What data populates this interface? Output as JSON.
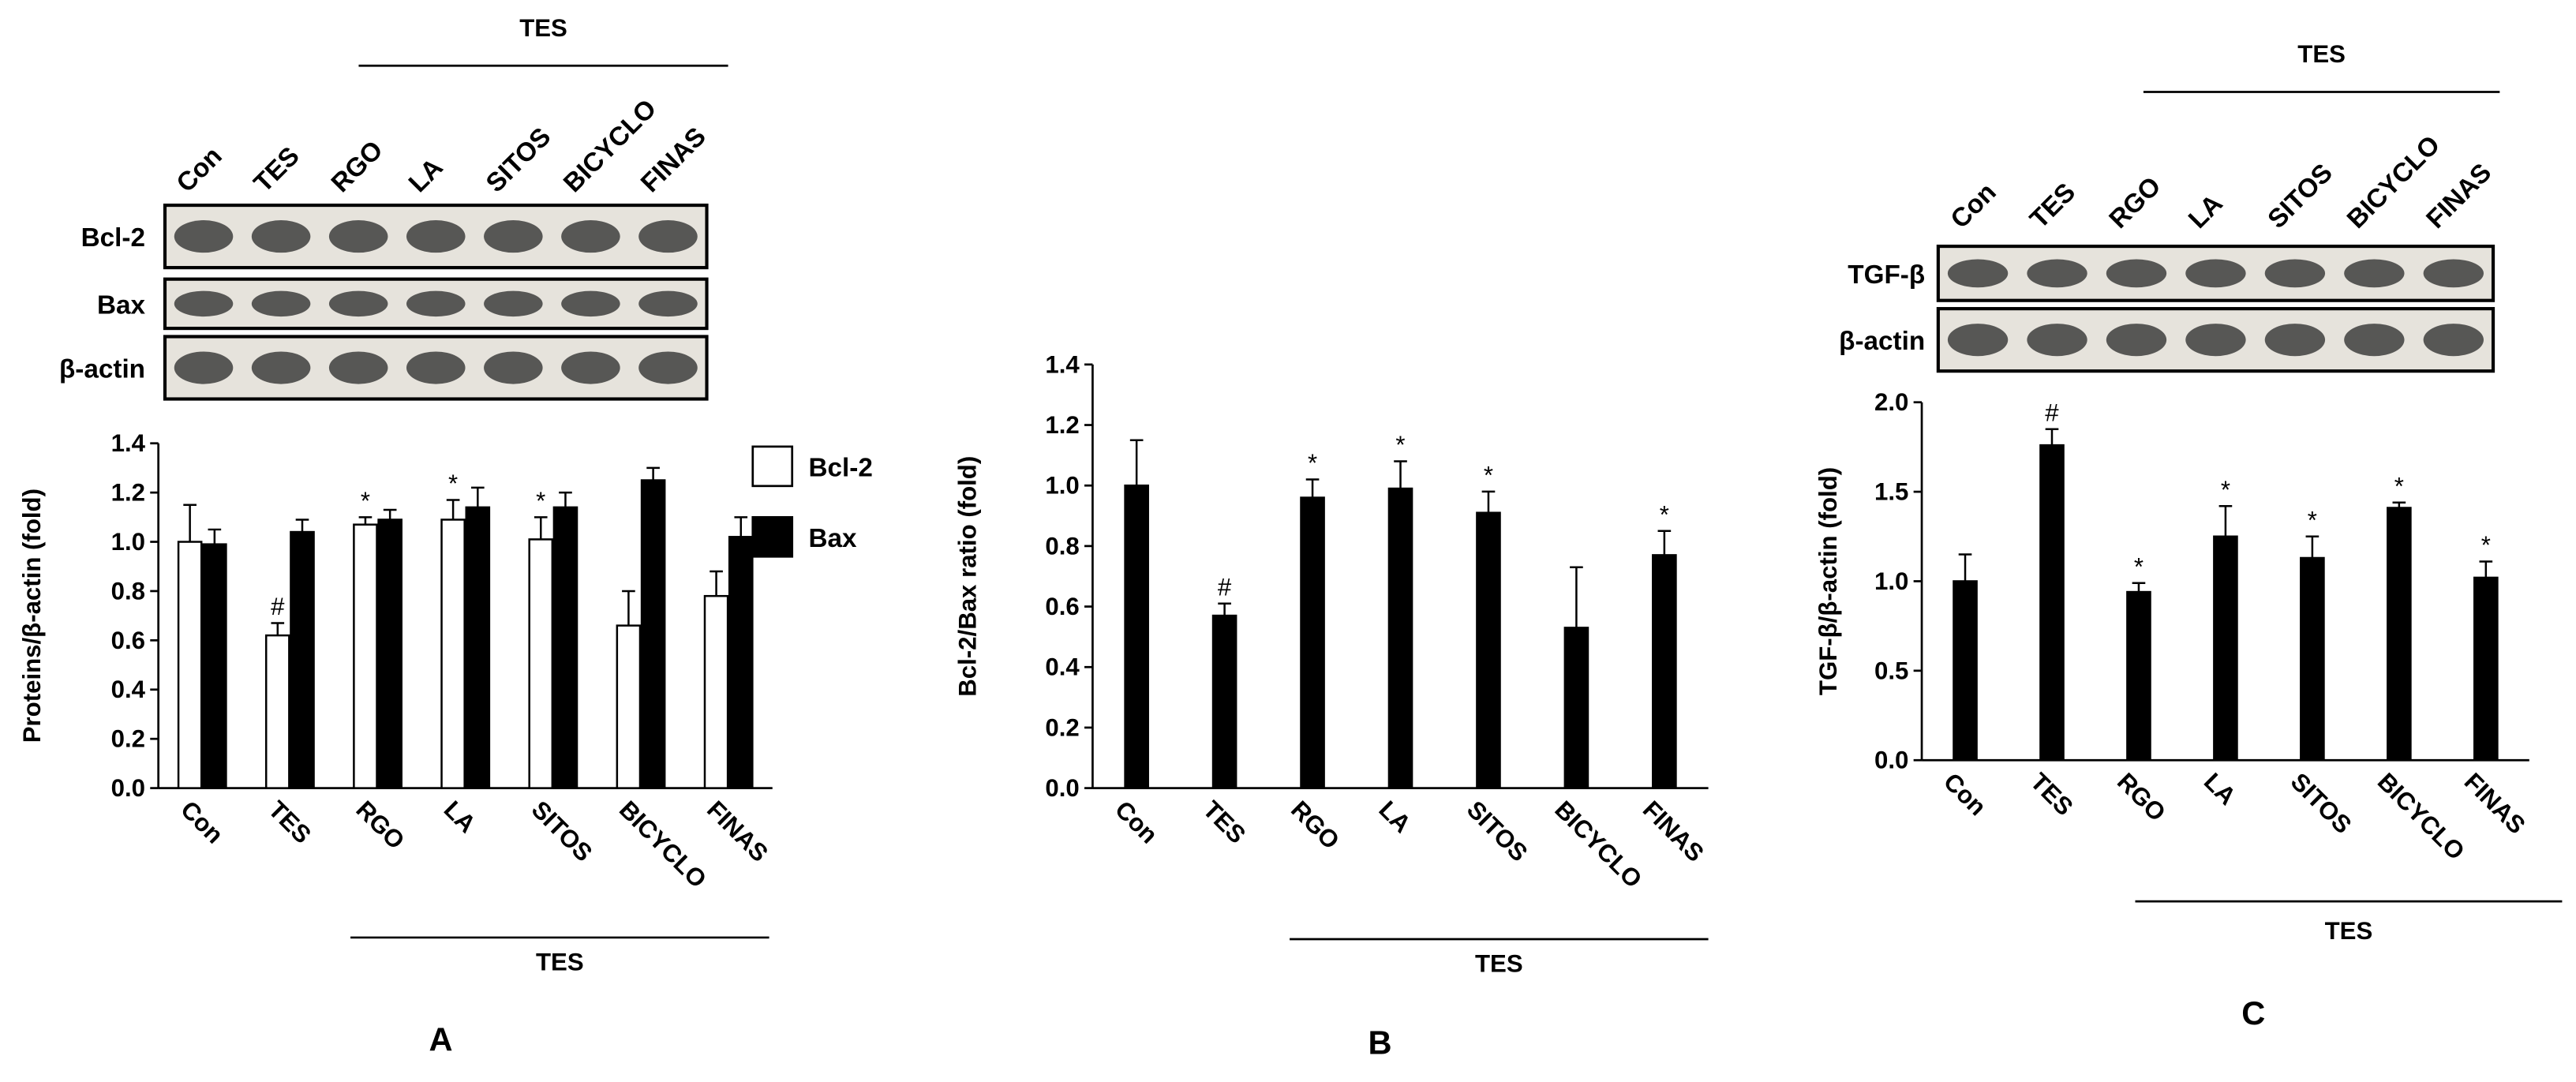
{
  "chart_data": [
    {
      "type": "bar",
      "label": "A",
      "blot": {
        "group_label": "TES",
        "lanes": [
          "Con",
          "TES",
          "RGO",
          "LA",
          "SITOS",
          "BICYCLO",
          "FINAS"
        ],
        "rows": [
          "Bcl-2",
          "Bax",
          "β-actin"
        ]
      },
      "categories": [
        "Con",
        "TES",
        "RGO",
        "LA",
        "SITOS",
        "BICYCLO",
        "FINAS"
      ],
      "group_label": "TES",
      "ylabel": "Proteins/β-actin (fold)",
      "ylim": [
        0,
        1.4
      ],
      "yticks": [
        {
          "value": 0,
          "label": "0.0"
        },
        0.2,
        0.4,
        0.6,
        0.8,
        {
          "value": 1,
          "label": "1.0"
        },
        1.2,
        1.4
      ],
      "legend": "right",
      "series": [
        {
          "name": "Bcl-2",
          "color": "#ffffff",
          "values": [
            1.0,
            0.62,
            1.07,
            1.09,
            1.01,
            0.66,
            0.78
          ],
          "errors": [
            0.15,
            0.05,
            0.03,
            0.08,
            0.09,
            0.14,
            0.1
          ],
          "annotations": [
            null,
            "#",
            "*",
            "*",
            "*",
            null,
            null
          ]
        },
        {
          "name": "Bax",
          "color": "#000000",
          "values": [
            0.99,
            1.04,
            1.09,
            1.14,
            1.14,
            1.25,
            1.02
          ],
          "errors": [
            0.06,
            0.05,
            0.04,
            0.08,
            0.06,
            0.05,
            0.08
          ]
        }
      ]
    },
    {
      "type": "bar",
      "label": "B",
      "categories": [
        "Con",
        "TES",
        "RGO",
        "LA",
        "SITOS",
        "BICYCLO",
        "FINAS"
      ],
      "group_label": "TES",
      "ylabel": "Bcl-2/Bax ratio (fold)",
      "ylim": [
        0,
        1.4
      ],
      "yticks": [
        {
          "value": 0,
          "label": "0.0"
        },
        0.2,
        0.4,
        0.6,
        0.8,
        {
          "value": 1,
          "label": "1.0"
        },
        1.2,
        1.4
      ],
      "series": [
        {
          "color": "#000000",
          "values": [
            1.0,
            0.57,
            0.96,
            0.99,
            0.91,
            0.53,
            0.77
          ],
          "errors": [
            0.15,
            0.04,
            0.06,
            0.09,
            0.07,
            0.2,
            0.08
          ],
          "annotations": [
            null,
            "#",
            "*",
            "*",
            "*",
            null,
            "*"
          ]
        }
      ]
    },
    {
      "type": "bar",
      "label": "C",
      "blot": {
        "group_label": "TES",
        "lanes": [
          "Con",
          "TES",
          "RGO",
          "LA",
          "SITOS",
          "BICYCLO",
          "FINAS"
        ],
        "rows": [
          "TGF-β",
          "β-actin"
        ]
      },
      "categories": [
        "Con",
        "TES",
        "RGO",
        "LA",
        "SITOS",
        "BICYCLO",
        "FINAS"
      ],
      "group_label": "TES",
      "ylabel": "TGF-β/β-actin (fold)",
      "ylim": [
        0,
        2.0
      ],
      "yticks": [
        {
          "value": 0,
          "label": "0.0"
        },
        0.5,
        {
          "value": 1,
          "label": "1.0"
        },
        1.5,
        {
          "value": 2,
          "label": "2.0"
        }
      ],
      "series": [
        {
          "color": "#000000",
          "values": [
            1.0,
            1.76,
            0.94,
            1.25,
            1.13,
            1.41,
            1.02
          ],
          "errors": [
            0.15,
            0.09,
            0.05,
            0.17,
            0.12,
            0.03,
            0.09
          ],
          "annotations": [
            null,
            "#",
            "*",
            "*",
            "*",
            "*",
            "*"
          ]
        }
      ]
    }
  ]
}
